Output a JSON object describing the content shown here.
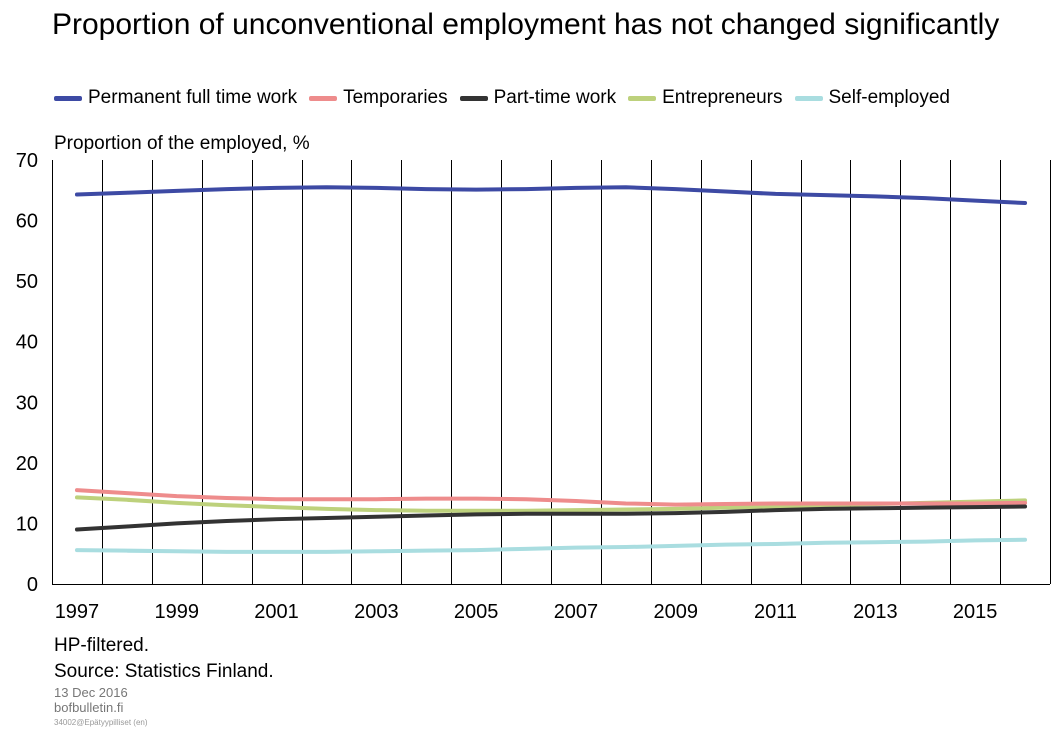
{
  "header": {
    "title": "Proportion of unconventional employment has not changed significantly"
  },
  "legend": [
    {
      "name": "Permanent full time work",
      "color": "#3d4aa4"
    },
    {
      "name": "Temporaries",
      "color": "#ee8c8c"
    },
    {
      "name": "Part-time work",
      "color": "#333333"
    },
    {
      "name": "Entrepreneurs",
      "color": "#bdd17c"
    },
    {
      "name": "Self-employed",
      "color": "#a9dde0"
    }
  ],
  "footer": {
    "note1": "HP-filtered.",
    "note2": "Source: Statistics Finland.",
    "date": "13 Dec 2016",
    "site": "bofbulletin.fi",
    "code": "34002@Epätyypilliset (en)"
  },
  "chart_data": {
    "type": "line",
    "title": "Proportion of unconventional employment has not changed significantly",
    "ylabel": "Proportion of the employed, %",
    "xlabel": "",
    "ylim": [
      0,
      70
    ],
    "yticks": [
      0,
      10,
      20,
      30,
      40,
      50,
      60,
      70
    ],
    "xticks": [
      "1997",
      "1999",
      "2001",
      "2003",
      "2005",
      "2007",
      "2009",
      "2011",
      "2013",
      "2015"
    ],
    "x": [
      1997,
      1998,
      1999,
      2000,
      2001,
      2002,
      2003,
      2004,
      2005,
      2006,
      2007,
      2008,
      2009,
      2010,
      2011,
      2012,
      2013,
      2014,
      2015,
      2016
    ],
    "grid": "vertical",
    "legend_position": "top",
    "series": [
      {
        "name": "Permanent full time work",
        "color": "#3d4aa4",
        "values": [
          64.3,
          64.6,
          64.9,
          65.2,
          65.4,
          65.5,
          65.4,
          65.2,
          65.1,
          65.2,
          65.4,
          65.5,
          65.2,
          64.8,
          64.4,
          64.2,
          64.0,
          63.7,
          63.3,
          62.9
        ]
      },
      {
        "name": "Temporaries",
        "color": "#ee8c8c",
        "values": [
          15.5,
          15.0,
          14.5,
          14.2,
          14.0,
          14.0,
          14.0,
          14.1,
          14.1,
          14.0,
          13.7,
          13.3,
          13.1,
          13.2,
          13.3,
          13.3,
          13.3,
          13.3,
          13.3,
          13.4
        ]
      },
      {
        "name": "Part-time work",
        "color": "#333333",
        "values": [
          9.0,
          9.5,
          10.0,
          10.4,
          10.7,
          10.9,
          11.1,
          11.3,
          11.5,
          11.6,
          11.6,
          11.6,
          11.7,
          11.9,
          12.2,
          12.4,
          12.5,
          12.6,
          12.7,
          12.8
        ]
      },
      {
        "name": "Entrepreneurs",
        "color": "#bdd17c",
        "values": [
          14.3,
          13.9,
          13.4,
          13.0,
          12.7,
          12.4,
          12.2,
          12.1,
          12.1,
          12.1,
          12.2,
          12.3,
          12.4,
          12.6,
          12.8,
          13.0,
          13.2,
          13.4,
          13.6,
          13.8
        ]
      },
      {
        "name": "Self-employed",
        "color": "#a9dde0",
        "values": [
          5.6,
          5.5,
          5.4,
          5.3,
          5.3,
          5.3,
          5.4,
          5.5,
          5.6,
          5.8,
          6.0,
          6.1,
          6.3,
          6.5,
          6.6,
          6.8,
          6.9,
          7.0,
          7.2,
          7.3
        ]
      }
    ]
  }
}
